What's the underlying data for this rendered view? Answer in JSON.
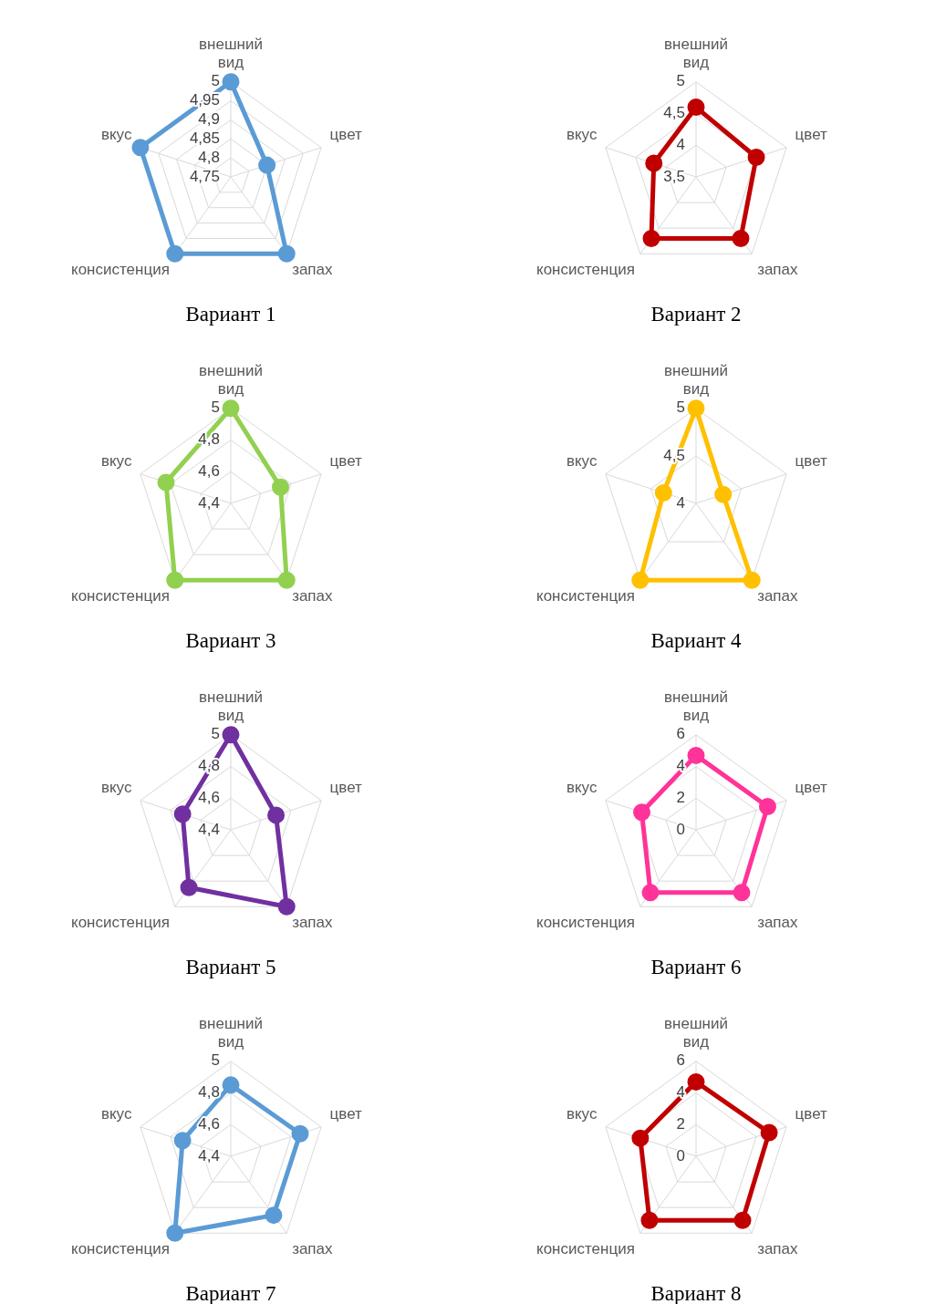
{
  "chart_data": [
    {
      "type": "radar",
      "title": "Вариант 1",
      "categories": [
        "внешний вид",
        "цвет",
        "запах",
        "консистенция",
        "вкус"
      ],
      "ylim": [
        4.75,
        5
      ],
      "yticks": [
        {
          "value": 4.75,
          "label": "4,75"
        },
        {
          "value": 4.8,
          "label": "4,8"
        },
        {
          "value": 4.85,
          "label": "4,85"
        },
        {
          "value": 4.9,
          "label": "4,9"
        },
        {
          "value": 4.95,
          "label": "4,95"
        },
        5
      ],
      "grid": true,
      "legend": false,
      "marker": "circle",
      "series": [
        {
          "color": "#5b9bd5",
          "values": [
            5,
            4.85,
            5,
            5,
            5
          ]
        }
      ]
    },
    {
      "type": "radar",
      "title": "Вариант 2",
      "categories": [
        "внешний вид",
        "цвет",
        "запах",
        "консистенция",
        "вкус"
      ],
      "ylim": [
        3.5,
        5
      ],
      "yticks": [
        {
          "value": 3.5,
          "label": "3,5"
        },
        4,
        {
          "value": 4.5,
          "label": "4,5"
        },
        5
      ],
      "grid": true,
      "legend": false,
      "marker": "circle",
      "series": [
        {
          "color": "#c00000",
          "values": [
            4.6,
            4.5,
            4.7,
            4.7,
            4.2
          ]
        }
      ]
    },
    {
      "type": "radar",
      "title": "Вариант 3",
      "categories": [
        "внешний вид",
        "цвет",
        "запах",
        "консистенция",
        "вкус"
      ],
      "ylim": [
        4.4,
        5
      ],
      "yticks": [
        {
          "value": 4.4,
          "label": "4,4"
        },
        {
          "value": 4.6,
          "label": "4,6"
        },
        {
          "value": 4.8,
          "label": "4,8"
        },
        5
      ],
      "grid": true,
      "legend": false,
      "marker": "circle",
      "series": [
        {
          "color": "#92d050",
          "values": [
            5,
            4.73,
            5,
            5,
            4.83
          ]
        }
      ]
    },
    {
      "type": "radar",
      "title": "Вариант 4",
      "categories": [
        "внешний вид",
        "цвет",
        "запах",
        "консистенция",
        "вкус"
      ],
      "ylim": [
        4,
        5
      ],
      "yticks": [
        4,
        {
          "value": 4.5,
          "label": "4,5"
        },
        5
      ],
      "grid": true,
      "legend": false,
      "marker": "circle",
      "series": [
        {
          "color": "#ffc000",
          "values": [
            5,
            4.3,
            5,
            5,
            4.36
          ]
        }
      ]
    },
    {
      "type": "radar",
      "title": "Вариант 5",
      "categories": [
        "внешний вид",
        "цвет",
        "запах",
        "консистенция",
        "вкус"
      ],
      "ylim": [
        4.4,
        5
      ],
      "yticks": [
        {
          "value": 4.4,
          "label": "4,4"
        },
        {
          "value": 4.6,
          "label": "4,6"
        },
        {
          "value": 4.8,
          "label": "4,8"
        },
        5
      ],
      "grid": true,
      "legend": false,
      "marker": "circle",
      "series": [
        {
          "color": "#7030a0",
          "values": [
            5,
            4.7,
            5,
            4.85,
            4.72
          ]
        }
      ]
    },
    {
      "type": "radar",
      "title": "Вариант 6",
      "categories": [
        "внешний вид",
        "цвет",
        "запах",
        "консистенция",
        "вкус"
      ],
      "ylim": [
        0,
        6
      ],
      "yticks": [
        0,
        2,
        4,
        6
      ],
      "grid": true,
      "legend": false,
      "marker": "circle",
      "series": [
        {
          "color": "#ff3399",
          "values": [
            4.7,
            4.75,
            4.9,
            4.9,
            3.6
          ]
        }
      ]
    },
    {
      "type": "radar",
      "title": "Вариант 7",
      "categories": [
        "внешний вид",
        "цвет",
        "запах",
        "консистенция",
        "вкус"
      ],
      "ylim": [
        4.4,
        5
      ],
      "yticks": [
        {
          "value": 4.4,
          "label": "4,4"
        },
        {
          "value": 4.6,
          "label": "4,6"
        },
        {
          "value": 4.8,
          "label": "4,8"
        },
        5
      ],
      "grid": true,
      "legend": false,
      "marker": "circle",
      "series": [
        {
          "color": "#5b9bd5",
          "values": [
            4.85,
            4.86,
            4.86,
            5,
            4.72
          ]
        }
      ]
    },
    {
      "type": "radar",
      "title": "Вариант 8",
      "categories": [
        "внешний вид",
        "цвет",
        "запах",
        "консистенция",
        "вкус"
      ],
      "ylim": [
        0,
        6
      ],
      "yticks": [
        0,
        2,
        4,
        6
      ],
      "grid": true,
      "legend": false,
      "marker": "circle",
      "series": [
        {
          "color": "#c00000",
          "values": [
            4.7,
            4.85,
            5,
            5,
            3.7
          ]
        }
      ]
    }
  ]
}
